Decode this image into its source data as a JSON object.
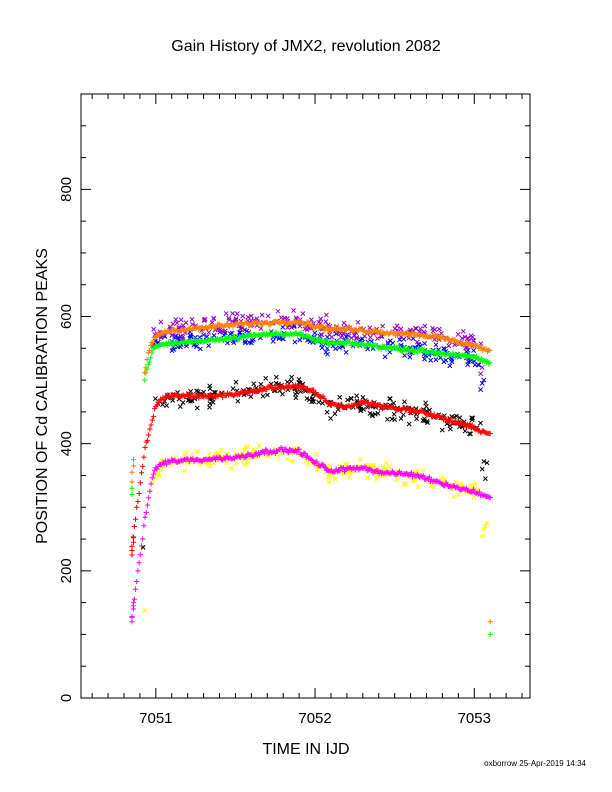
{
  "chart_data": {
    "type": "scatter",
    "title": "Gain History of JMX2, revolution 2082",
    "xlabel": "TIME IN IJD",
    "ylabel": "POSITION OF Cd CALIBRATION PEAKS",
    "xlim": [
      7050.53,
      7053.35
    ],
    "ylim": [
      0,
      950
    ],
    "xticks": [
      7051,
      7052,
      7053
    ],
    "yticks": [
      0,
      200,
      400,
      600,
      800
    ],
    "grid": false,
    "legend": "none",
    "footer": "oxborrow 25-Apr-2019 14:34",
    "series": [
      {
        "marker": "cross",
        "color": "#ff00ff",
        "trend": true,
        "noise": 3,
        "x": [
          7050.85,
          7050.9,
          7050.93,
          7050.96,
          7050.98,
          7051.0,
          7051.05,
          7051.1,
          7051.2,
          7051.3,
          7051.4,
          7051.5,
          7051.6,
          7051.7,
          7051.8,
          7051.9,
          7052.0,
          7052.1,
          7052.2,
          7052.3,
          7052.4,
          7052.5,
          7052.6,
          7052.7,
          7052.8,
          7052.9,
          7053.0,
          7053.1
        ],
        "y": [
          130,
          220,
          280,
          320,
          350,
          362,
          370,
          372,
          374,
          375,
          377,
          378,
          383,
          388,
          390,
          388,
          370,
          357,
          360,
          363,
          355,
          353,
          352,
          346,
          338,
          330,
          325,
          315
        ],
        "extra": [
          [
            7050.85,
            120
          ],
          [
            7050.85,
            128
          ],
          [
            7050.86,
            140
          ],
          [
            7050.86,
            150
          ]
        ]
      },
      {
        "marker": "cross",
        "color": "#ff0000",
        "trend": true,
        "noise": 3,
        "x": [
          7050.85,
          7050.93,
          7050.96,
          7050.98,
          7051.0,
          7051.05,
          7051.1,
          7051.2,
          7051.3,
          7051.4,
          7051.5,
          7051.6,
          7051.7,
          7051.8,
          7051.9,
          7052.0,
          7052.1,
          7052.2,
          7052.3,
          7052.4,
          7052.5,
          7052.6,
          7052.7,
          7052.8,
          7052.9,
          7053.0,
          7053.1
        ],
        "y": [
          240,
          390,
          420,
          440,
          460,
          472,
          475,
          475,
          474,
          476,
          478,
          482,
          487,
          490,
          490,
          480,
          462,
          458,
          465,
          460,
          456,
          453,
          448,
          440,
          432,
          425,
          415
        ],
        "extra": [
          [
            7050.85,
            225
          ],
          [
            7050.85,
            232
          ],
          [
            7050.86,
            245
          ],
          [
            7050.86,
            252
          ]
        ]
      },
      {
        "marker": "cross",
        "color": "#00ff00",
        "trend": true,
        "noise": 3,
        "x": [
          7050.93,
          7050.95,
          7050.98,
          7051.0,
          7051.05,
          7051.1,
          7051.2,
          7051.3,
          7051.4,
          7051.5,
          7051.6,
          7051.7,
          7051.8,
          7051.9,
          7052.0,
          7052.1,
          7052.2,
          7052.3,
          7052.4,
          7052.5,
          7052.6,
          7052.7,
          7052.8,
          7052.9,
          7053.0,
          7053.1
        ],
        "y": [
          500,
          525,
          545,
          553,
          556,
          558,
          560,
          562,
          565,
          567,
          570,
          572,
          573,
          572,
          563,
          558,
          558,
          556,
          553,
          550,
          548,
          545,
          542,
          539,
          535,
          527
        ],
        "extra": [
          [
            7050.85,
            320
          ],
          [
            7050.85,
            330
          ],
          [
            7053.1,
            100
          ]
        ]
      },
      {
        "marker": "cross",
        "color": "#ff8000",
        "trend": true,
        "noise": 3,
        "x": [
          7050.93,
          7050.95,
          7050.98,
          7051.0,
          7051.05,
          7051.1,
          7051.2,
          7051.3,
          7051.4,
          7051.5,
          7051.6,
          7051.7,
          7051.8,
          7051.9,
          7052.0,
          7052.1,
          7052.2,
          7052.3,
          7052.4,
          7052.5,
          7052.6,
          7052.7,
          7052.8,
          7052.9,
          7053.0,
          7053.1
        ],
        "y": [
          510,
          540,
          560,
          570,
          575,
          578,
          580,
          582,
          585,
          587,
          589,
          590,
          592,
          592,
          585,
          580,
          580,
          578,
          576,
          574,
          573,
          570,
          566,
          560,
          555,
          545
        ],
        "extra": [
          [
            7050.85,
            340
          ],
          [
            7050.85,
            355
          ],
          [
            7050.86,
            365
          ],
          [
            7050.86,
            375
          ],
          [
            7053.1,
            120
          ]
        ]
      },
      {
        "marker": "x",
        "color": "#ffff00",
        "trend": false,
        "noise": 12,
        "count": 220,
        "x": [
          7050.98,
          7051.0,
          7051.1,
          7051.3,
          7051.5,
          7051.7,
          7051.9,
          7052.0,
          7052.1,
          7052.3,
          7052.5,
          7052.7,
          7052.9,
          7053.05
        ],
        "y": [
          345,
          362,
          372,
          374,
          378,
          388,
          385,
          368,
          355,
          362,
          352,
          344,
          330,
          322
        ],
        "extra": [
          [
            7050.93,
            138
          ],
          [
            7053.05,
            255
          ],
          [
            7053.06,
            265
          ],
          [
            7053.08,
            275
          ],
          [
            7053.07,
            270
          ]
        ]
      },
      {
        "marker": "x",
        "color": "#000000",
        "trend": false,
        "noise": 14,
        "count": 220,
        "x": [
          7050.98,
          7051.0,
          7051.1,
          7051.3,
          7051.5,
          7051.7,
          7051.9,
          7052.0,
          7052.1,
          7052.3,
          7052.5,
          7052.7,
          7052.9,
          7053.05
        ],
        "y": [
          440,
          460,
          473,
          474,
          478,
          488,
          490,
          478,
          460,
          462,
          455,
          445,
          432,
          420
        ],
        "extra": [
          [
            7050.92,
            237
          ],
          [
            7053.05,
            360
          ],
          [
            7053.06,
            372
          ],
          [
            7053.08,
            370
          ],
          [
            7053.07,
            345
          ]
        ]
      },
      {
        "marker": "x",
        "color": "#0000ff",
        "trend": false,
        "noise": 14,
        "count": 220,
        "x": [
          7050.98,
          7051.0,
          7051.1,
          7051.3,
          7051.5,
          7051.7,
          7051.9,
          7052.0,
          7052.1,
          7052.3,
          7052.5,
          7052.7,
          7052.9,
          7053.05
        ],
        "y": [
          550,
          556,
          558,
          562,
          567,
          572,
          573,
          562,
          557,
          555,
          550,
          545,
          538,
          530
        ],
        "extra": [
          [
            7053.04,
            485
          ],
          [
            7053.05,
            495
          ],
          [
            7053.06,
            500
          ]
        ]
      },
      {
        "marker": "x",
        "color": "#9400d3",
        "trend": false,
        "noise": 14,
        "count": 220,
        "x": [
          7050.98,
          7051.0,
          7051.1,
          7051.3,
          7051.5,
          7051.7,
          7051.9,
          7052.0,
          7052.1,
          7052.3,
          7052.5,
          7052.7,
          7052.9,
          7053.05
        ],
        "y": [
          565,
          576,
          580,
          584,
          588,
          592,
          594,
          585,
          580,
          578,
          575,
          572,
          562,
          555
        ],
        "extra": [
          [
            7053.04,
            510
          ],
          [
            7053.05,
            520
          ]
        ]
      }
    ]
  }
}
